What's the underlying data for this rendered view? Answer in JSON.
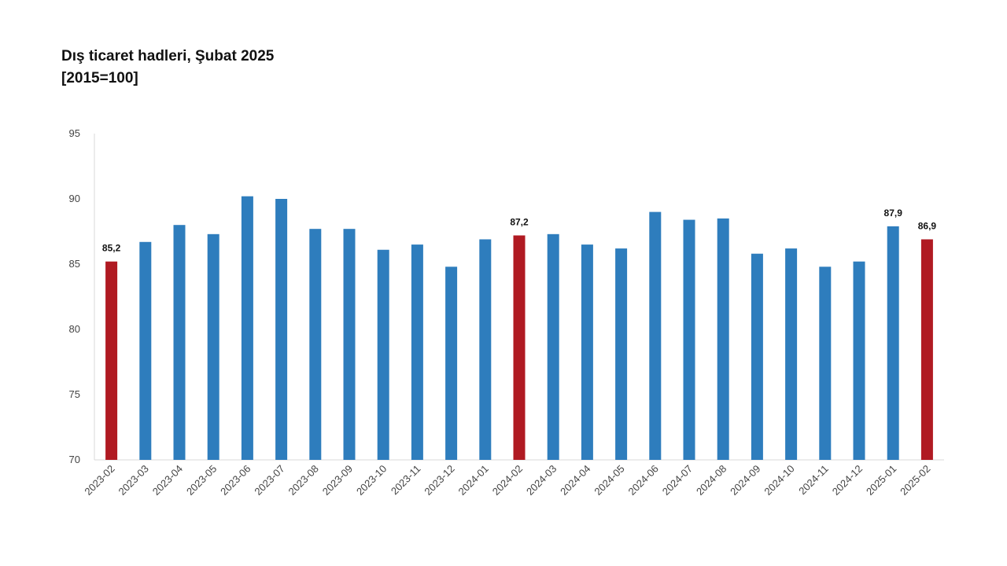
{
  "chart_data": {
    "type": "bar",
    "title": "Dış ticaret hadleri, Şubat 2025",
    "subtitle": "[2015=100]",
    "xlabel": "",
    "ylabel": "",
    "ylim": [
      70,
      95
    ],
    "yticks": [
      70,
      75,
      80,
      85,
      90,
      95
    ],
    "grid": false,
    "legend": "none",
    "categories": [
      "2023-02",
      "2023-03",
      "2023-04",
      "2023-05",
      "2023-06",
      "2023-07",
      "2023-08",
      "2023-09",
      "2023-10",
      "2023-11",
      "2023-12",
      "2024-01",
      "2024-02",
      "2024-03",
      "2024-04",
      "2024-05",
      "2024-06",
      "2024-07",
      "2024-08",
      "2024-09",
      "2024-10",
      "2024-11",
      "2024-12",
      "2025-01",
      "2025-02"
    ],
    "values": [
      85.2,
      86.7,
      88.0,
      87.3,
      90.2,
      90.0,
      87.7,
      87.7,
      86.1,
      86.5,
      84.8,
      86.9,
      87.2,
      87.3,
      86.5,
      86.2,
      89.0,
      88.4,
      88.5,
      85.8,
      86.2,
      84.8,
      85.2,
      87.9,
      86.9
    ],
    "highlighted": [
      "2023-02",
      "2024-02",
      "2025-02"
    ],
    "data_labels": [
      {
        "category": "2023-02",
        "text": "85,2"
      },
      {
        "category": "2024-02",
        "text": "87,2"
      },
      {
        "category": "2025-01",
        "text": "87,9"
      },
      {
        "category": "2025-02",
        "text": "86,9"
      }
    ],
    "colors": {
      "bar": "#2e7dbd",
      "highlight": "#b01a22",
      "axis": "#d9d9d9"
    }
  }
}
